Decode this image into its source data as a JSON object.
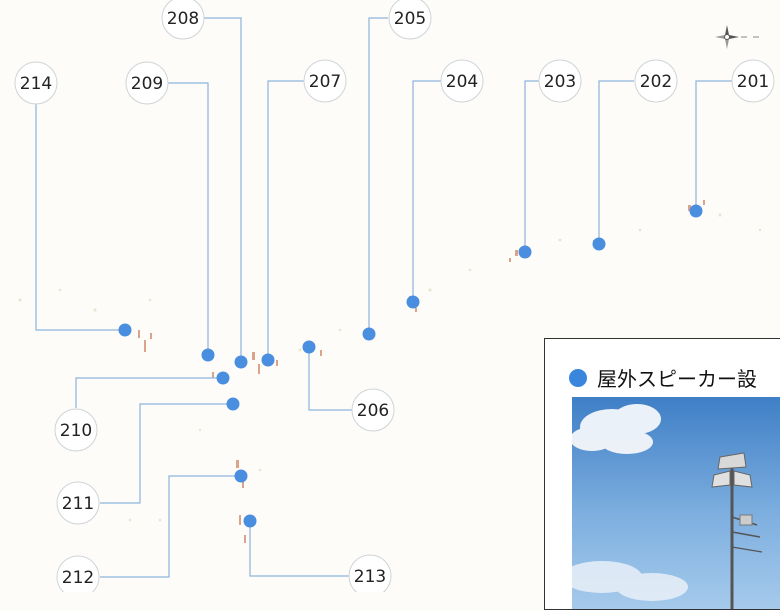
{
  "points": [
    {
      "id": "201",
      "label": "201",
      "name": "point-201"
    },
    {
      "id": "202",
      "label": "202",
      "name": "point-202"
    },
    {
      "id": "203",
      "label": "203",
      "name": "point-203"
    },
    {
      "id": "204",
      "label": "204",
      "name": "point-204"
    },
    {
      "id": "205",
      "label": "205",
      "name": "point-205"
    },
    {
      "id": "206",
      "label": "206",
      "name": "point-206"
    },
    {
      "id": "207",
      "label": "207",
      "name": "point-207"
    },
    {
      "id": "208",
      "label": "208",
      "name": "point-208"
    },
    {
      "id": "209",
      "label": "209",
      "name": "point-209"
    },
    {
      "id": "210",
      "label": "210",
      "name": "point-210"
    },
    {
      "id": "211",
      "label": "211",
      "name": "point-211"
    },
    {
      "id": "212",
      "label": "212",
      "name": "point-212"
    },
    {
      "id": "213",
      "label": "213",
      "name": "point-213"
    },
    {
      "id": "214",
      "label": "214",
      "name": "point-214"
    }
  ],
  "legend": {
    "title": "屋外スピーカー設",
    "marker_color": "#3a86dc",
    "photo_icon": "outdoor-speaker-photo"
  },
  "colors": {
    "marker": "#4a8ee0",
    "leader": "#8fb4dd",
    "background": "#fdfcf8"
  },
  "compass_icon": "compass-rose-icon"
}
